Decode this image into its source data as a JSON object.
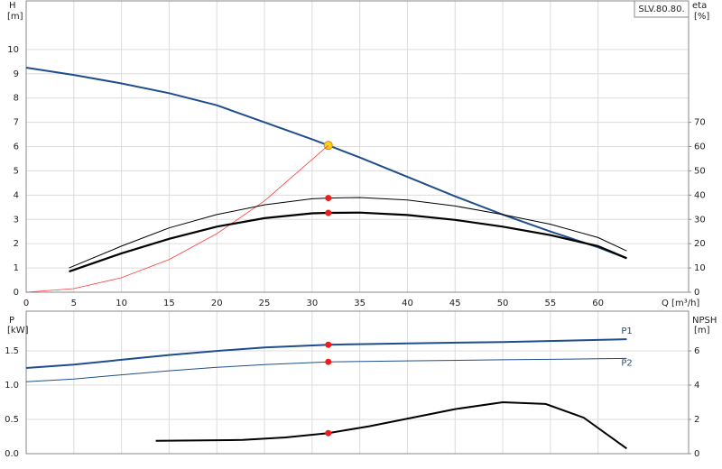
{
  "chart_data": [
    {
      "type": "line",
      "title": "SLV.80.80.",
      "ylabel": "H",
      "yunit": "[m]",
      "y2label": "eta",
      "y2unit": "[%]",
      "xlabel": "Q [m³/h]",
      "xlim": [
        0,
        69.5
      ],
      "xticks": [
        0,
        5,
        10,
        15,
        20,
        25,
        30,
        35,
        40,
        45,
        50,
        55,
        60
      ],
      "ylim": [
        0,
        12
      ],
      "yticks": [
        0,
        1,
        2,
        3,
        4,
        5,
        6,
        7,
        8,
        9,
        10
      ],
      "y2lim": [
        0,
        120
      ],
      "y2ticks": [
        0,
        10,
        20,
        30,
        40,
        50,
        60,
        70
      ],
      "grid": true,
      "duty_q": 31.7,
      "series": [
        {
          "color": "#1f4e8c",
          "width": 2,
          "point_color": "#ffd21f",
          "x": [
            0,
            5,
            10,
            15,
            20,
            25,
            30,
            31.7,
            35,
            40,
            45,
            50,
            55,
            60,
            63
          ],
          "values": [
            9.25,
            8.95,
            8.6,
            8.2,
            7.7,
            7.0,
            6.3,
            6.05,
            5.55,
            4.75,
            3.95,
            3.2,
            2.5,
            1.85,
            1.4
          ]
        },
        {
          "color": "#ff3b3b",
          "width": 0.8,
          "x": [
            0,
            5,
            10,
            15,
            20,
            25,
            31.7
          ],
          "values": [
            0,
            0.15,
            0.6,
            1.35,
            2.41,
            3.76,
            6.05
          ]
        },
        {
          "color": "#000000",
          "width": 1,
          "axis": "y2",
          "point_color": "#ee1c1c",
          "x": [
            4.5,
            10,
            15,
            20,
            25,
            30,
            31.7,
            35,
            40,
            45,
            50,
            55,
            60,
            63
          ],
          "values": [
            10,
            19,
            26.5,
            32,
            36,
            38.5,
            38.8,
            39,
            38,
            35.5,
            32,
            28,
            22.5,
            17
          ]
        },
        {
          "color": "#000000",
          "width": 2.2,
          "axis": "y2",
          "point_color": "#ee1c1c",
          "x": [
            4.5,
            10,
            15,
            20,
            25,
            30,
            31.7,
            35,
            40,
            45,
            50,
            55,
            60,
            63
          ],
          "values": [
            8.5,
            16,
            22,
            27,
            30.5,
            32.5,
            32.7,
            32.8,
            31.8,
            29.8,
            27,
            23.5,
            19,
            14
          ]
        }
      ]
    },
    {
      "type": "line",
      "ylabel": "P",
      "yunit": "[kW]",
      "y2label": "NPSH",
      "y2unit": "[m]",
      "xlim": [
        0,
        69.5
      ],
      "xticks": [
        0,
        5,
        10,
        15,
        20,
        25,
        30,
        35,
        40,
        45,
        50,
        55,
        60
      ],
      "ylim": [
        0,
        2.08
      ],
      "yticks": [
        {
          "value": 0,
          "label": "0.0"
        },
        0.5,
        {
          "value": 1,
          "label": "1.0"
        },
        1.5
      ],
      "y2lim": [
        0,
        8.32
      ],
      "y2ticks": [
        0,
        2,
        4,
        6
      ],
      "grid": true,
      "duty_q": 31.7,
      "series": [
        {
          "name": "P1",
          "color": "#1f4e8c",
          "width": 2,
          "point_color": "#ee1c1c",
          "x": [
            0,
            5,
            10,
            15,
            20,
            25,
            31.7,
            40,
            50,
            60,
            63
          ],
          "values": [
            1.25,
            1.3,
            1.37,
            1.44,
            1.5,
            1.55,
            1.59,
            1.61,
            1.63,
            1.66,
            1.67
          ]
        },
        {
          "name": "P2",
          "color": "#1f4e8c",
          "width": 1,
          "point_color": "#ee1c1c",
          "x": [
            0,
            5,
            10,
            15,
            20,
            25,
            31.7,
            40,
            50,
            60,
            63
          ],
          "values": [
            1.05,
            1.09,
            1.15,
            1.21,
            1.26,
            1.3,
            1.34,
            1.355,
            1.37,
            1.385,
            1.39
          ]
        },
        {
          "color": "#000000",
          "width": 2,
          "axis": "y2",
          "point_color": "#ee1c1c",
          "x": [
            13.6,
            22.7,
            27.2,
            31.7,
            36,
            45,
            50,
            54.5,
            58.5,
            63
          ],
          "values": [
            0.75,
            0.8,
            0.95,
            1.2,
            1.6,
            2.6,
            3.0,
            2.9,
            2.1,
            0.3
          ]
        }
      ]
    }
  ]
}
